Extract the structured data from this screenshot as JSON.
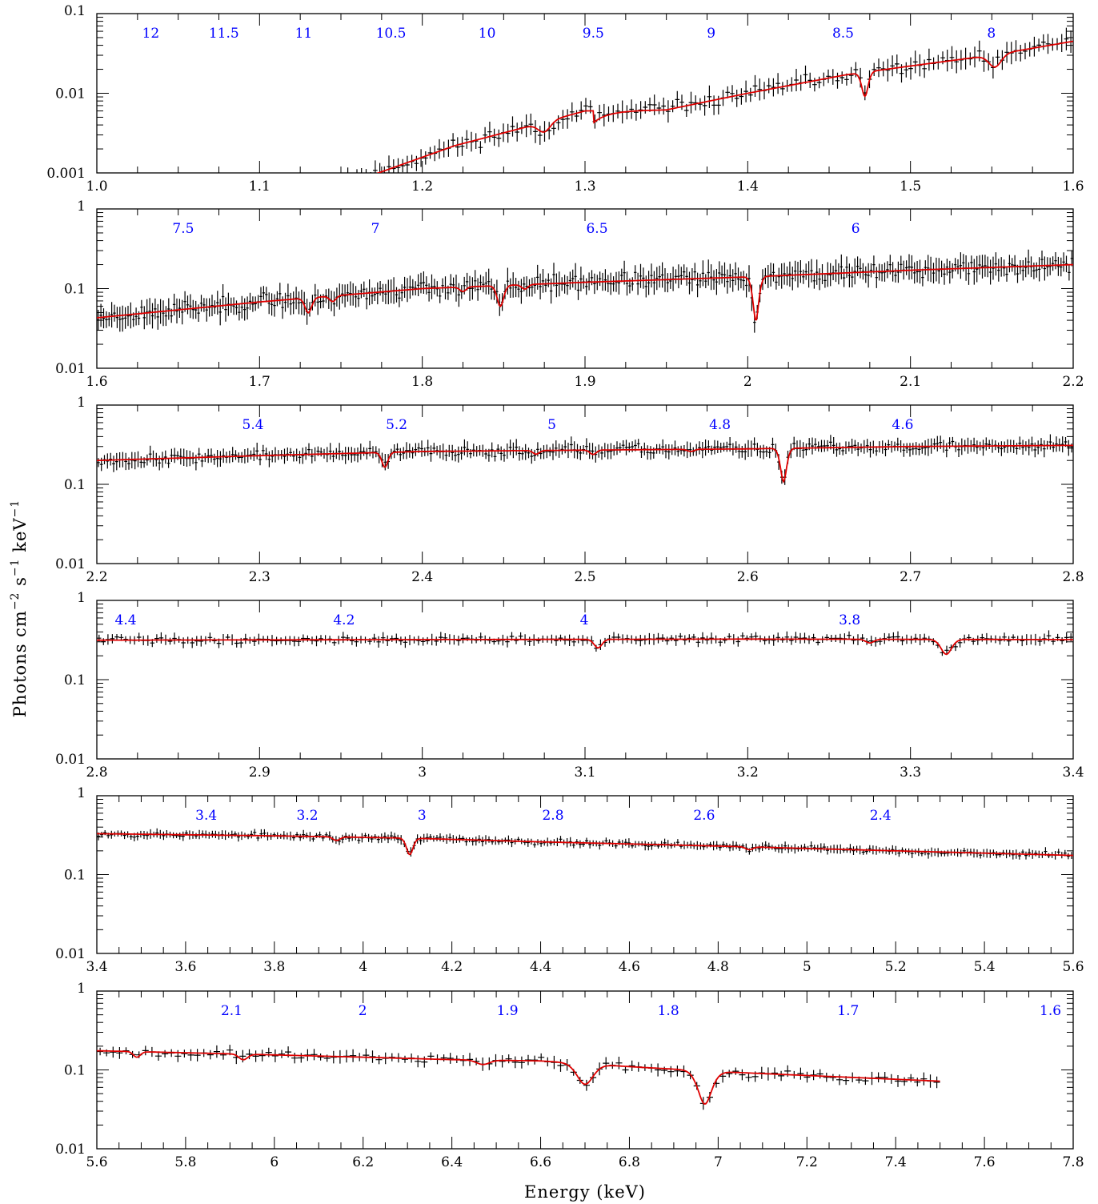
{
  "figure": {
    "xlabel": "Energy (keV)",
    "ylabel_parts": [
      "Photons cm",
      "−2",
      " s",
      "−1",
      " keV",
      "−1"
    ]
  },
  "colors": {
    "data": "#000000",
    "model": "#e00000",
    "wavelength_labels": "#0000ff",
    "axes": "#000000"
  },
  "chart_data": [
    {
      "type": "line",
      "x_range": [
        1.0,
        1.6
      ],
      "y_scale": "log",
      "ylim": [
        0.001,
        0.1
      ],
      "x_ticks": [
        "1.0",
        "1.1",
        "1.2",
        "1.3",
        "1.4",
        "1.5",
        "1.6"
      ],
      "x_tick_values": [
        1.0,
        1.1,
        1.2,
        1.3,
        1.4,
        1.5,
        1.6
      ],
      "y_ticks": [
        "0.001",
        "0.01",
        "0.1"
      ],
      "y_tick_values": [
        0.001,
        0.01,
        0.1
      ],
      "top_axis_labels": [
        "12",
        "11.5",
        "11",
        "10.5",
        "10",
        "9.5",
        "9",
        "8.5",
        "8"
      ],
      "continuum": [
        [
          1.0,
          0.0003
        ],
        [
          1.17,
          0.00095
        ],
        [
          1.22,
          0.0022
        ],
        [
          1.26,
          0.0036
        ],
        [
          1.3,
          0.006
        ],
        [
          1.35,
          0.0062
        ],
        [
          1.4,
          0.01
        ],
        [
          1.46,
          0.017
        ],
        [
          1.5,
          0.022
        ],
        [
          1.55,
          0.03
        ],
        [
          1.6,
          0.045
        ]
      ],
      "edges": [
        {
          "at": 1.305,
          "drop": 0.3
        }
      ],
      "lines": [
        {
          "center": 1.275,
          "depth": 0.25,
          "width": 0.004
        },
        {
          "center": 1.472,
          "depth": 0.5,
          "width": 0.0022
        },
        {
          "center": 1.552,
          "depth": 0.3,
          "width": 0.004
        }
      ],
      "data_x_min": 1.15,
      "data_points": 160,
      "scatter": 0.06,
      "seed": 11
    },
    {
      "type": "line",
      "x_range": [
        1.6,
        2.2
      ],
      "y_scale": "log",
      "ylim": [
        0.01,
        1
      ],
      "x_ticks": [
        "1.6",
        "1.7",
        "1.8",
        "1.9",
        "2",
        "2.1",
        "2.2"
      ],
      "x_tick_values": [
        1.6,
        1.7,
        1.8,
        1.9,
        2.0,
        2.1,
        2.2
      ],
      "y_ticks": [
        "0.01",
        "0.1",
        "1"
      ],
      "y_tick_values": [
        0.01,
        0.1,
        1
      ],
      "top_axis_labels": [
        "7.5",
        "7",
        "6.5",
        "6"
      ],
      "continuum": [
        [
          1.6,
          0.043
        ],
        [
          1.7,
          0.068
        ],
        [
          1.8,
          0.1
        ],
        [
          1.9,
          0.12
        ],
        [
          2.0,
          0.14
        ],
        [
          2.1,
          0.17
        ],
        [
          2.2,
          0.2
        ]
      ],
      "edges": [],
      "lines": [
        {
          "center": 1.73,
          "depth": 0.35,
          "width": 0.0022
        },
        {
          "center": 1.745,
          "depth": 0.15,
          "width": 0.002
        },
        {
          "center": 1.825,
          "depth": 0.12,
          "width": 0.002
        },
        {
          "center": 1.848,
          "depth": 0.45,
          "width": 0.0022
        },
        {
          "center": 1.863,
          "depth": 0.12,
          "width": 0.002
        },
        {
          "center": 2.005,
          "depth": 0.72,
          "width": 0.0022
        }
      ],
      "data_x_min": 1.6,
      "data_points": 360,
      "scatter": 0.07,
      "seed": 23
    },
    {
      "type": "line",
      "x_range": [
        2.2,
        2.8
      ],
      "y_scale": "log",
      "ylim": [
        0.01,
        1
      ],
      "x_ticks": [
        "2.2",
        "2.3",
        "2.4",
        "2.5",
        "2.6",
        "2.7",
        "2.8"
      ],
      "x_tick_values": [
        2.2,
        2.3,
        2.4,
        2.5,
        2.6,
        2.7,
        2.8
      ],
      "y_ticks": [
        "0.01",
        "0.1",
        "1"
      ],
      "y_tick_values": [
        0.01,
        0.1,
        1
      ],
      "top_axis_labels": [
        "5.4",
        "5.2",
        "5",
        "4.8",
        "4.6"
      ],
      "continuum": [
        [
          2.2,
          0.2
        ],
        [
          2.3,
          0.23
        ],
        [
          2.4,
          0.26
        ],
        [
          2.5,
          0.27
        ],
        [
          2.6,
          0.28
        ],
        [
          2.7,
          0.3
        ],
        [
          2.8,
          0.31
        ]
      ],
      "edges": [],
      "lines": [
        {
          "center": 2.377,
          "depth": 0.35,
          "width": 0.002
        },
        {
          "center": 2.47,
          "depth": 0.1,
          "width": 0.002
        },
        {
          "center": 2.505,
          "depth": 0.12,
          "width": 0.002
        },
        {
          "center": 2.565,
          "depth": 0.06,
          "width": 0.002
        },
        {
          "center": 2.622,
          "depth": 0.62,
          "width": 0.0022
        }
      ],
      "data_x_min": 2.2,
      "data_points": 320,
      "scatter": 0.045,
      "seed": 37
    },
    {
      "type": "line",
      "x_range": [
        2.8,
        3.4
      ],
      "y_scale": "log",
      "ylim": [
        0.01,
        1
      ],
      "x_ticks": [
        "2.8",
        "2.9",
        "3",
        "3.1",
        "3.2",
        "3.3",
        "3.4"
      ],
      "x_tick_values": [
        2.8,
        2.9,
        3.0,
        3.1,
        3.2,
        3.3,
        3.4
      ],
      "y_ticks": [
        "0.01",
        "0.1",
        "1"
      ],
      "y_tick_values": [
        0.01,
        0.1,
        1
      ],
      "top_axis_labels": [
        "4.4",
        "4.2",
        "4",
        "3.8"
      ],
      "continuum": [
        [
          2.8,
          0.315
        ],
        [
          3.0,
          0.32
        ],
        [
          3.2,
          0.325
        ],
        [
          3.4,
          0.32
        ]
      ],
      "edges": [],
      "lines": [
        {
          "center": 3.108,
          "depth": 0.22,
          "width": 0.0025
        },
        {
          "center": 3.275,
          "depth": 0.1,
          "width": 0.0025
        },
        {
          "center": 3.322,
          "depth": 0.35,
          "width": 0.0035
        }
      ],
      "data_x_min": 2.8,
      "data_points": 220,
      "scatter": 0.03,
      "seed": 41
    },
    {
      "type": "line",
      "x_range": [
        3.4,
        5.6
      ],
      "y_scale": "log",
      "ylim": [
        0.01,
        1
      ],
      "x_ticks": [
        "3.4",
        "3.6",
        "3.8",
        "4",
        "4.2",
        "4.4",
        "4.6",
        "4.8",
        "5",
        "5.2",
        "5.4",
        "5.6"
      ],
      "x_tick_values": [
        3.4,
        3.6,
        3.8,
        4.0,
        4.2,
        4.4,
        4.6,
        4.8,
        5.0,
        5.2,
        5.4,
        5.6
      ],
      "y_ticks": [
        "0.01",
        "0.1",
        "1"
      ],
      "y_tick_values": [
        0.01,
        0.1,
        1
      ],
      "top_axis_labels": [
        "3.4",
        "3.2",
        "3",
        "2.8",
        "2.6",
        "2.4"
      ],
      "continuum": [
        [
          3.4,
          0.33
        ],
        [
          3.8,
          0.31
        ],
        [
          4.1,
          0.29
        ],
        [
          4.4,
          0.26
        ],
        [
          4.8,
          0.23
        ],
        [
          5.2,
          0.2
        ],
        [
          5.6,
          0.175
        ]
      ],
      "edges": [],
      "lines": [
        {
          "center": 3.94,
          "depth": 0.1,
          "width": 0.008
        },
        {
          "center": 4.105,
          "depth": 0.38,
          "width": 0.008
        },
        {
          "center": 4.87,
          "depth": 0.08,
          "width": 0.008
        }
      ],
      "data_x_min": 3.4,
      "data_points": 300,
      "scatter": 0.025,
      "seed": 53
    },
    {
      "type": "line",
      "x_range": [
        5.6,
        7.8
      ],
      "y_scale": "log",
      "ylim": [
        0.01,
        1
      ],
      "x_ticks": [
        "5.6",
        "5.8",
        "6",
        "6.2",
        "6.4",
        "6.6",
        "6.8",
        "7",
        "7.2",
        "7.4",
        "7.6",
        "7.8"
      ],
      "x_tick_values": [
        5.6,
        5.8,
        6.0,
        6.2,
        6.4,
        6.6,
        6.8,
        7.0,
        7.2,
        7.4,
        7.6,
        7.8
      ],
      "y_ticks": [
        "0.01",
        "0.1",
        "1"
      ],
      "y_tick_values": [
        0.01,
        0.1,
        1
      ],
      "top_axis_labels": [
        "2.1",
        "2",
        "1.9",
        "1.8",
        "1.7",
        "1.6"
      ],
      "continuum": [
        [
          5.6,
          0.175
        ],
        [
          5.8,
          0.165
        ],
        [
          6.0,
          0.155
        ],
        [
          6.2,
          0.145
        ],
        [
          6.4,
          0.135
        ],
        [
          6.6,
          0.13
        ],
        [
          6.8,
          0.11
        ],
        [
          7.0,
          0.095
        ],
        [
          7.2,
          0.085
        ],
        [
          7.5,
          0.072
        ]
      ],
      "edges": [],
      "lines": [
        {
          "center": 5.69,
          "depth": 0.15,
          "width": 0.008
        },
        {
          "center": 5.93,
          "depth": 0.15,
          "width": 0.01
        },
        {
          "center": 6.47,
          "depth": 0.12,
          "width": 0.015
        },
        {
          "center": 6.7,
          "depth": 0.45,
          "width": 0.02
        },
        {
          "center": 6.97,
          "depth": 0.62,
          "width": 0.018
        }
      ],
      "data_x_min": 5.6,
      "data_x_max": 7.5,
      "data_points": 130,
      "scatter": 0.035,
      "seed": 67
    }
  ]
}
